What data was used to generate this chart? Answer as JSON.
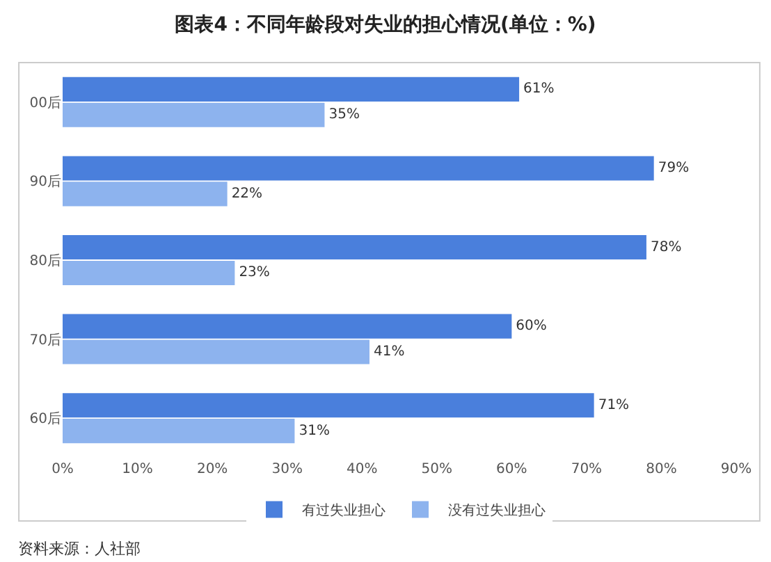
{
  "chart_data": {
    "type": "bar",
    "orientation": "horizontal",
    "title": "图表4：不同年龄段对失业的担心情况(单位：%)",
    "categories": [
      "00后",
      "90后",
      "80后",
      "70后",
      "60后"
    ],
    "series": [
      {
        "name": "有过失业担心",
        "color": "#4a7fdc",
        "values": [
          61,
          79,
          78,
          60,
          71
        ],
        "value_labels": [
          "61%",
          "79%",
          "78%",
          "60%",
          "71%"
        ]
      },
      {
        "name": "没有过失业担心",
        "color": "#8db3ee",
        "values": [
          35,
          22,
          23,
          41,
          31
        ],
        "value_labels": [
          "35%",
          "22%",
          "23%",
          "41%",
          "31%"
        ]
      }
    ],
    "xlim": [
      0,
      90
    ],
    "xticks": [
      {
        "value": 0,
        "label": "0%"
      },
      {
        "value": 10,
        "label": "10%"
      },
      {
        "value": 20,
        "label": "20%"
      },
      {
        "value": 30,
        "label": "30%"
      },
      {
        "value": 40,
        "label": "40%"
      },
      {
        "value": 50,
        "label": "50%"
      },
      {
        "value": 60,
        "label": "60%"
      },
      {
        "value": 70,
        "label": "70%"
      },
      {
        "value": 80,
        "label": "80%"
      },
      {
        "value": 90,
        "label": "90%"
      }
    ],
    "grid": false,
    "legend": "bottom",
    "annotations": [
      "资料来源：人社部"
    ]
  }
}
